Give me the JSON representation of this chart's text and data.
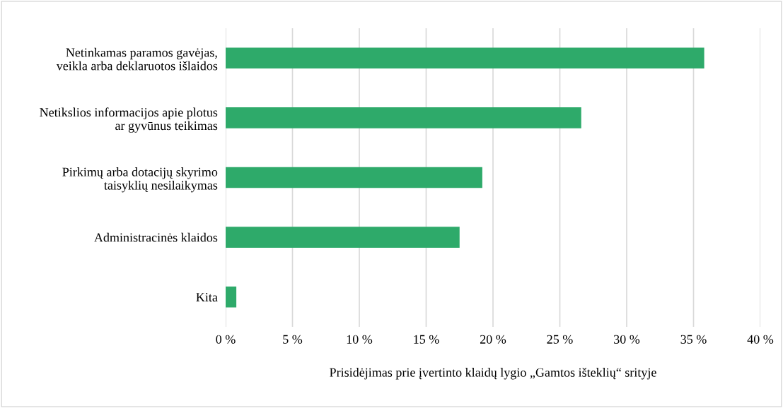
{
  "chart_data": {
    "type": "bar",
    "orientation": "horizontal",
    "categories": [
      "Netinkamas paramos gavėjas,\nveikla arba deklaruotos išlaidos",
      "Netikslios informacijos apie plotus\nar gyvūnus teikimas",
      "Pirkimų arba dotacijų skyrimo\ntaisyklių nesilaikymas",
      "Administracinės klaidos",
      "Kita"
    ],
    "values": [
      35.8,
      26.6,
      19.2,
      17.5,
      0.8
    ],
    "color": "#2eaa6a",
    "xlabel": "Prisidėjimas prie įvertinto klaidų lygio „Gamtos išteklių“ srityje",
    "xlim": [
      0,
      40
    ],
    "xticks": [
      {
        "value": 0,
        "label": "0 %"
      },
      {
        "value": 5,
        "label": "5 %"
      },
      {
        "value": 10,
        "label": "10 %"
      },
      {
        "value": 15,
        "label": "15 %"
      },
      {
        "value": 20,
        "label": "20 %"
      },
      {
        "value": 25,
        "label": "25 %"
      },
      {
        "value": 30,
        "label": "30 %"
      },
      {
        "value": 35,
        "label": "35 %"
      },
      {
        "value": 40,
        "label": "40 %"
      }
    ],
    "grid": "x"
  }
}
